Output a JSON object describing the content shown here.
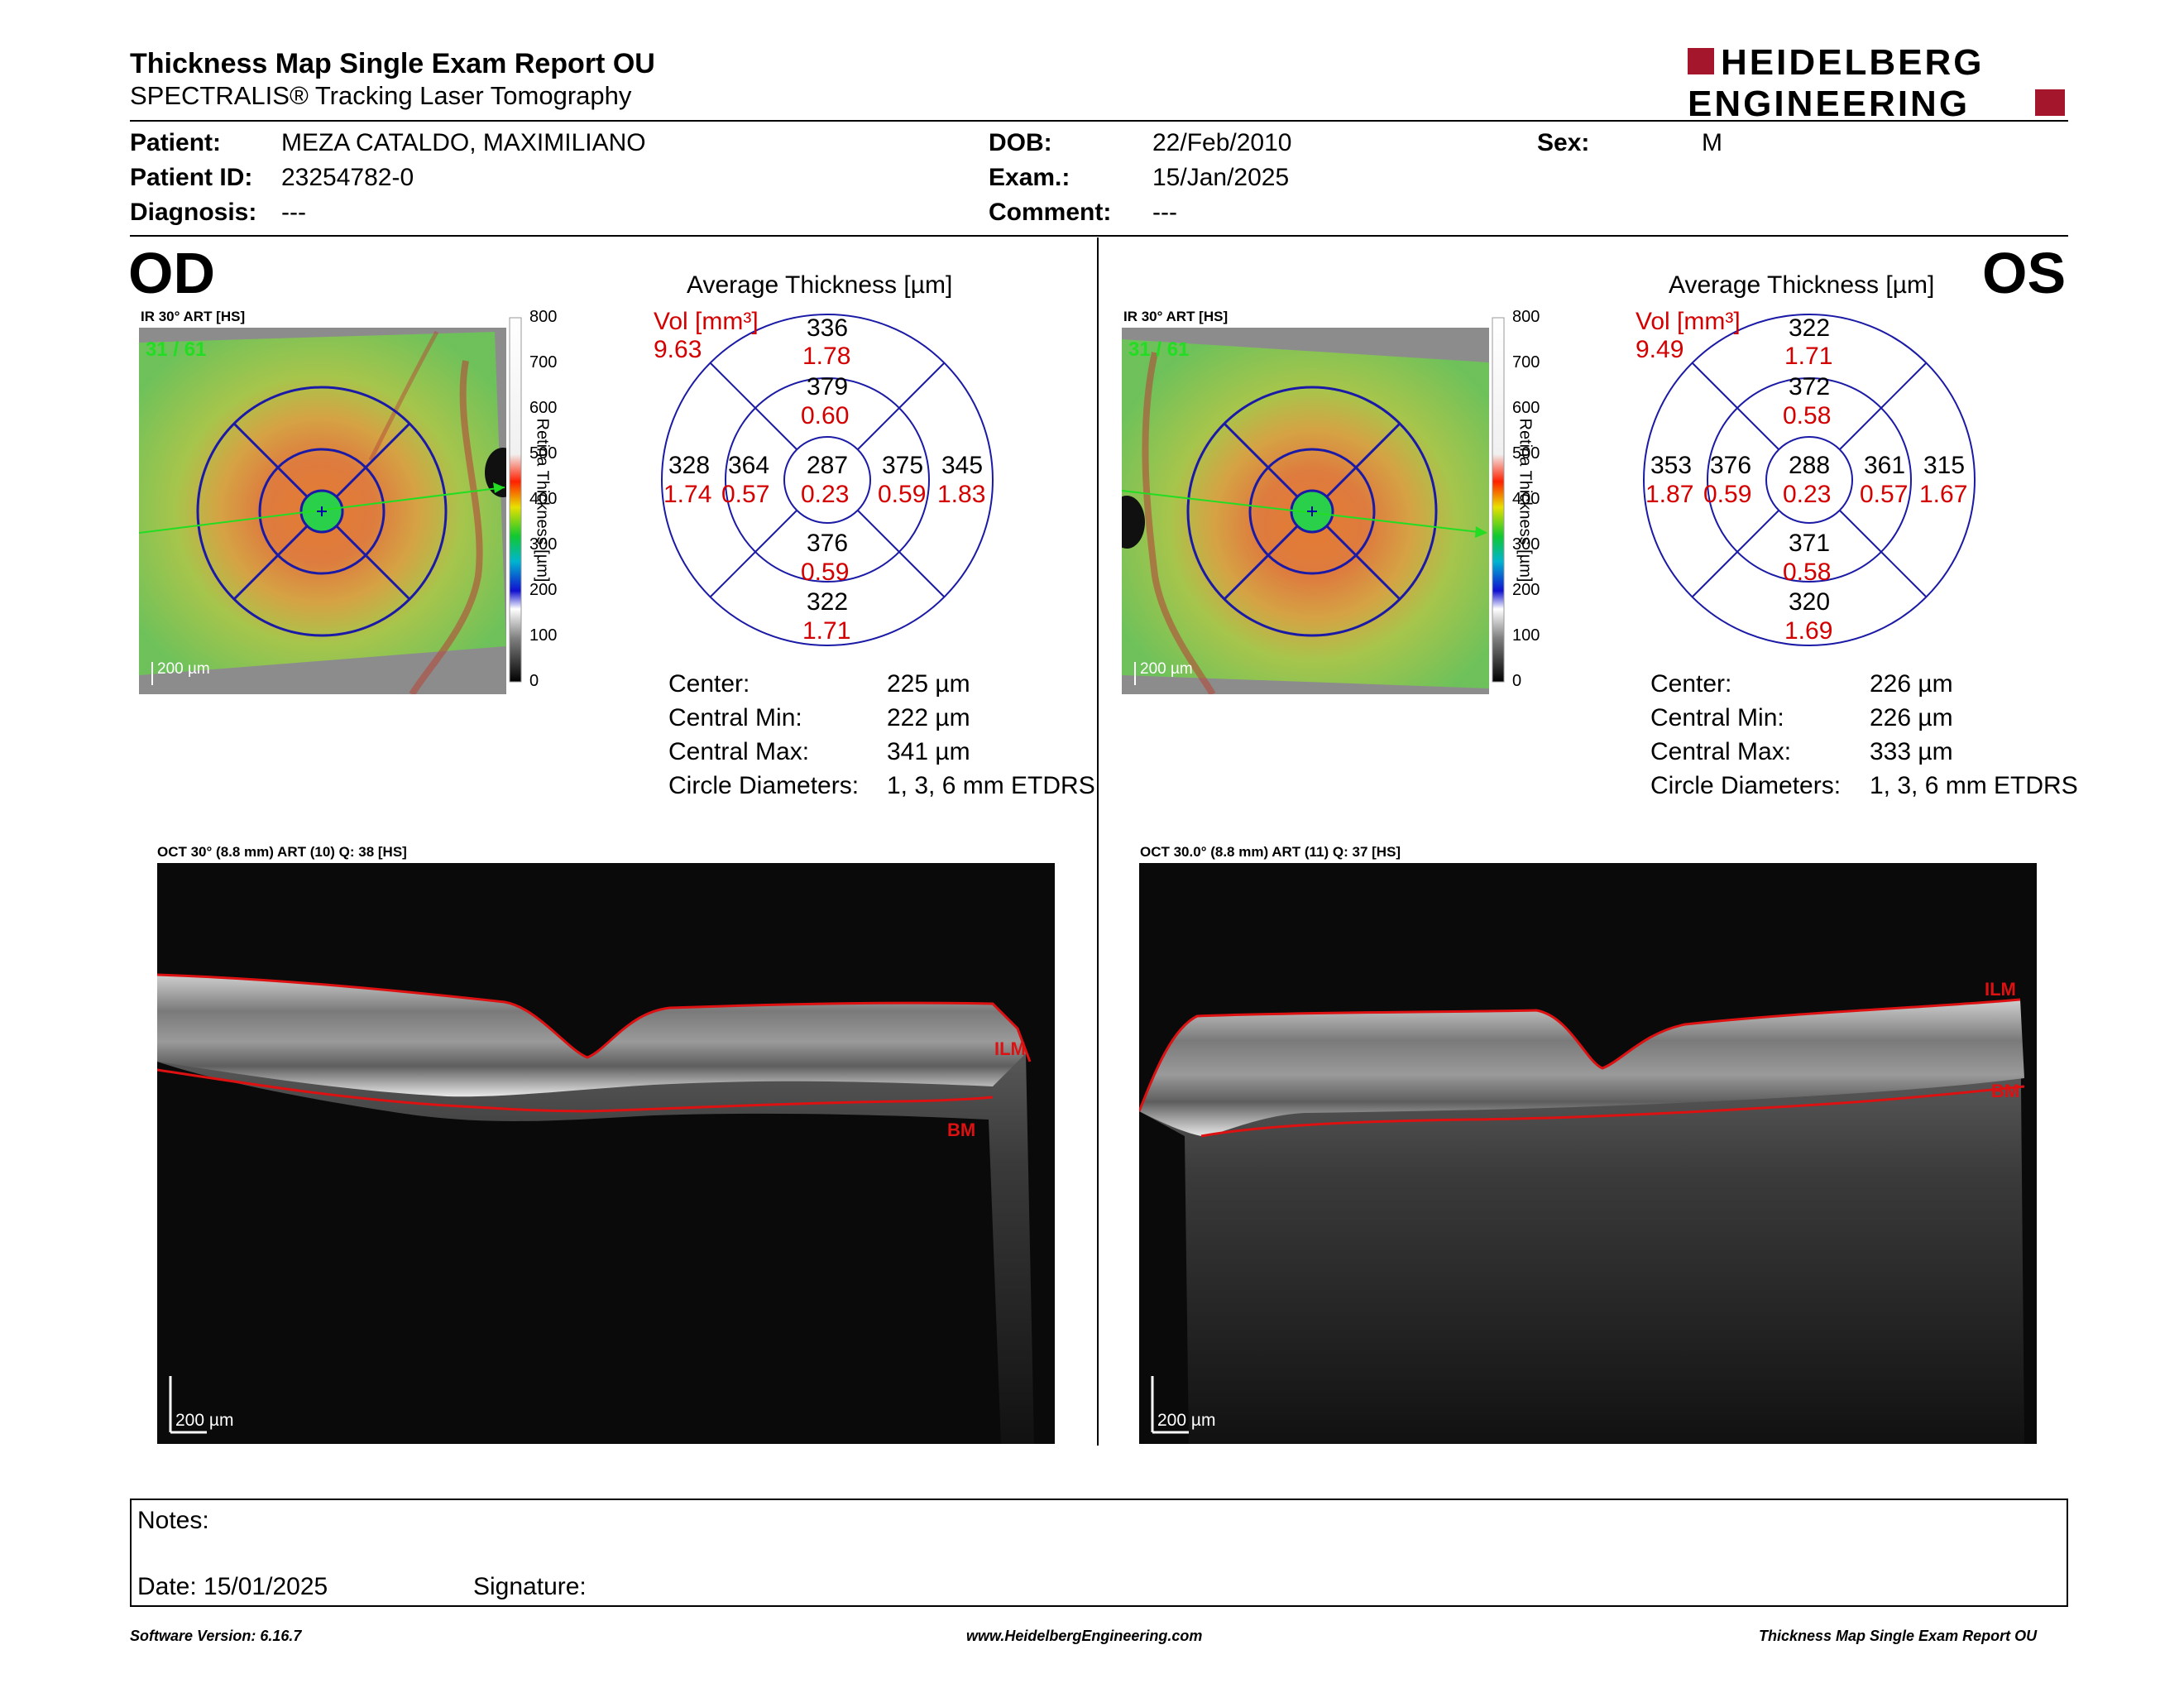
{
  "header": {
    "title": "Thickness Map Single Exam Report OU",
    "subtitle": "SPECTRALIS® Tracking Laser Tomography",
    "logo_line1": "HEIDELBERG",
    "logo_line2": "ENGINEERING"
  },
  "patient": {
    "patient_label": "Patient:",
    "patient_value": "MEZA CATALDO, MAXIMILIANO",
    "id_label": "Patient ID:",
    "id_value": "23254782-0",
    "diagnosis_label": "Diagnosis:",
    "diagnosis_value": "---",
    "dob_label": "DOB:",
    "dob_value": "22/Feb/2010",
    "exam_label": "Exam.:",
    "exam_value": "15/Jan/2025",
    "comment_label": "Comment:",
    "comment_value": "---",
    "sex_label": "Sex:",
    "sex_value": "M"
  },
  "od": {
    "eye": "OD",
    "ir_caption": "IR 30° ART [HS]",
    "frame": "31 / 61",
    "scale": "200 µm",
    "colorbar_ticks": [
      "800",
      "700",
      "600",
      "500",
      "400",
      "300",
      "200",
      "100",
      "0"
    ],
    "colorbar_label": "Retina Thickness [µm]",
    "avg_title": "Average Thickness [µm]",
    "vol_label": "Vol [mm³]",
    "vol_value": "9.63",
    "grid": {
      "center_t": "287",
      "center_v": "0.23",
      "inner_sup_t": "379",
      "inner_sup_v": "0.60",
      "inner_inf_t": "376",
      "inner_inf_v": "0.59",
      "inner_left_t": "364",
      "inner_left_v": "0.57",
      "inner_right_t": "375",
      "inner_right_v": "0.59",
      "outer_sup_t": "336",
      "outer_sup_v": "1.78",
      "outer_inf_t": "322",
      "outer_inf_v": "1.71",
      "outer_left_t": "328",
      "outer_left_v": "1.74",
      "outer_right_t": "345",
      "outer_right_v": "1.83"
    },
    "stats": {
      "center_label": "Center:",
      "center_value": "225 µm",
      "min_label": "Central Min:",
      "min_value": "222 µm",
      "max_label": "Central Max:",
      "max_value": "341 µm",
      "diam_label": "Circle Diameters:",
      "diam_value": "1, 3, 6 mm ETDRS"
    },
    "oct_caption": "OCT 30° (8.8 mm) ART (10) Q: 38 [HS]",
    "oct_scale": "200 µm",
    "ilm": "ILM",
    "bm": "BM"
  },
  "os": {
    "eye": "OS",
    "ir_caption": "IR 30° ART [HS]",
    "frame": "31 / 61",
    "scale": "200 µm",
    "colorbar_ticks": [
      "800",
      "700",
      "600",
      "500",
      "400",
      "300",
      "200",
      "100",
      "0"
    ],
    "colorbar_label": "Retina Thickness [µm]",
    "avg_title": "Average Thickness [µm]",
    "vol_label": "Vol [mm³]",
    "vol_value": "9.49",
    "grid": {
      "center_t": "288",
      "center_v": "0.23",
      "inner_sup_t": "372",
      "inner_sup_v": "0.58",
      "inner_inf_t": "371",
      "inner_inf_v": "0.58",
      "inner_left_t": "376",
      "inner_left_v": "0.59",
      "inner_right_t": "361",
      "inner_right_v": "0.57",
      "outer_sup_t": "322",
      "outer_sup_v": "1.71",
      "outer_inf_t": "320",
      "outer_inf_v": "1.69",
      "outer_left_t": "353",
      "outer_left_v": "1.87",
      "outer_right_t": "315",
      "outer_right_v": "1.67"
    },
    "stats": {
      "center_label": "Center:",
      "center_value": "226 µm",
      "min_label": "Central Min:",
      "min_value": "226 µm",
      "max_label": "Central Max:",
      "max_value": "333 µm",
      "diam_label": "Circle Diameters:",
      "diam_value": "1, 3, 6 mm ETDRS"
    },
    "oct_caption": "OCT 30.0° (8.8 mm) ART (11) Q: 37 [HS]",
    "oct_scale": "200 µm",
    "ilm": "ILM",
    "bm": "BM"
  },
  "notes": {
    "notes_label": "Notes:",
    "date_label": "Date: 15/01/2025",
    "signature_label": "Signature:"
  },
  "footer": {
    "left": "Software Version: 6.16.7",
    "center": "www.HeidelbergEngineering.com",
    "right": "Thickness Map Single Exam Report OU"
  },
  "colors": {
    "red_text": "#d40000",
    "grid_blue": "#1a1aa6",
    "logo_maroon": "#a3162b",
    "frame_green": "#22dd22"
  }
}
